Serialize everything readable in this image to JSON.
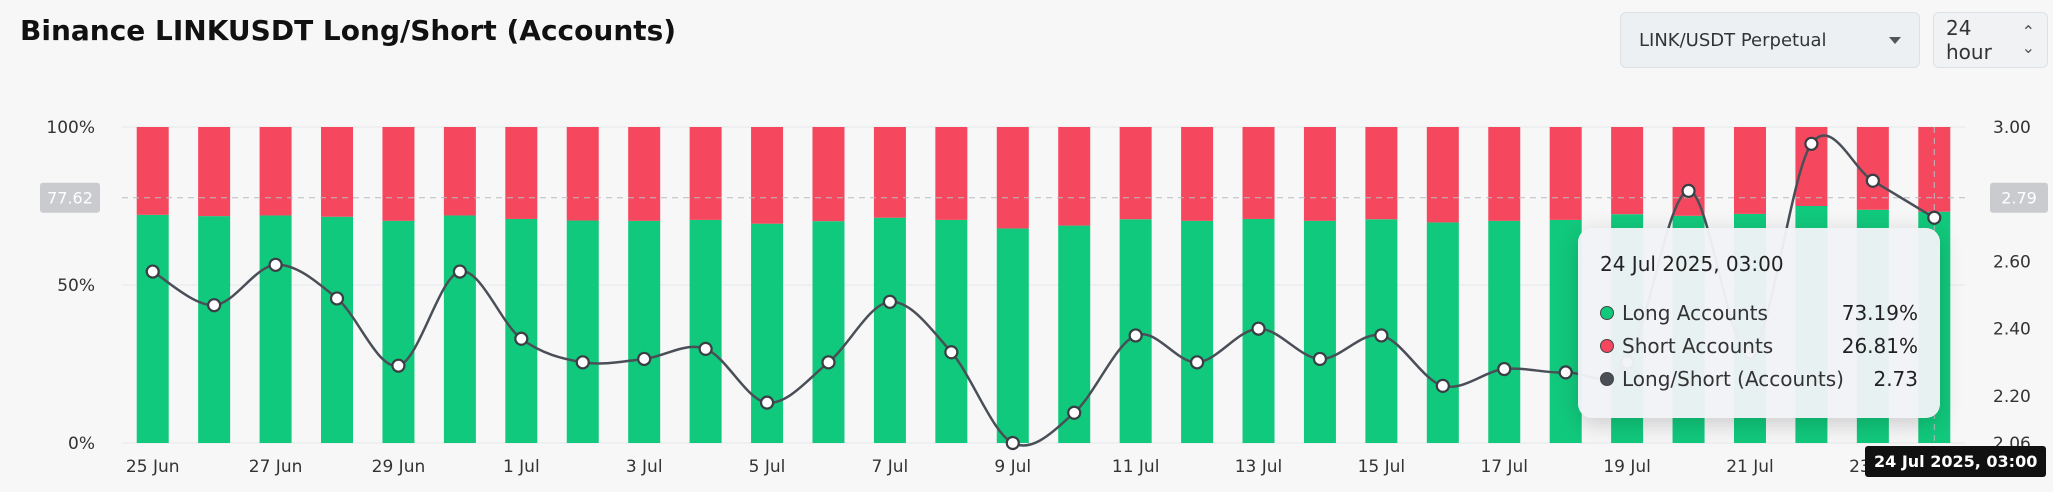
{
  "header": {
    "title": "Binance LINKUSDT Long/Short (Accounts)",
    "pair_select": "LINK/USDT Perpetual",
    "interval_select": "24 hour"
  },
  "colors": {
    "long": "#11c97c",
    "short": "#f5485f",
    "ratio_line": "#4a4f57",
    "badge": "#c9cbcf"
  },
  "icons": {
    "pair_select": "chevron-down-icon",
    "interval_select": "up-down-chevron-icon"
  },
  "chart_data": {
    "type": "bar",
    "categories": [
      "25 Jun",
      "26 Jun",
      "27 Jun",
      "28 Jun",
      "29 Jun",
      "30 Jun",
      "1 Jul",
      "2 Jul",
      "3 Jul",
      "4 Jul",
      "5 Jul",
      "6 Jul",
      "7 Jul",
      "8 Jul",
      "9 Jul",
      "10 Jul",
      "11 Jul",
      "12 Jul",
      "13 Jul",
      "14 Jul",
      "15 Jul",
      "16 Jul",
      "17 Jul",
      "18 Jul",
      "19 Jul",
      "20 Jul",
      "21 Jul",
      "22 Jul",
      "23 Jul",
      "24 Jul"
    ],
    "x_tick_labels": [
      "25 Jun",
      "27 Jun",
      "29 Jun",
      "1 Jul",
      "3 Jul",
      "5 Jul",
      "7 Jul",
      "9 Jul",
      "11 Jul",
      "13 Jul",
      "15 Jul",
      "17 Jul",
      "19 Jul",
      "21 Jul",
      "23 Jul"
    ],
    "series": [
      {
        "name": "Long Accounts",
        "values": [
          72.2,
          71.8,
          72.0,
          71.6,
          70.3,
          72.0,
          70.9,
          70.4,
          70.3,
          70.6,
          69.4,
          70.2,
          71.3,
          70.6,
          67.9,
          68.8,
          70.8,
          70.3,
          70.9,
          70.3,
          70.8,
          69.8,
          70.3,
          70.6,
          72.4,
          71.9,
          72.5,
          75.0,
          73.8,
          73.19
        ]
      },
      {
        "name": "Short Accounts",
        "values": [
          27.8,
          28.2,
          28.0,
          28.4,
          29.7,
          28.0,
          29.1,
          29.6,
          29.7,
          29.4,
          30.6,
          29.8,
          28.7,
          29.4,
          32.1,
          31.2,
          29.2,
          29.7,
          29.1,
          29.7,
          29.2,
          30.2,
          29.7,
          29.4,
          27.6,
          28.1,
          27.5,
          25.0,
          26.2,
          26.81
        ]
      },
      {
        "name": "Long/Short (Accounts)",
        "axis": "right",
        "values": [
          2.57,
          2.47,
          2.59,
          2.49,
          2.29,
          2.57,
          2.37,
          2.3,
          2.31,
          2.34,
          2.18,
          2.3,
          2.48,
          2.33,
          2.06,
          2.15,
          2.38,
          2.3,
          2.4,
          2.31,
          2.38,
          2.23,
          2.28,
          2.27,
          2.3,
          2.81,
          2.33,
          2.95,
          2.84,
          2.73
        ]
      }
    ],
    "y_left": {
      "ticks": [
        "0%",
        "50%",
        "100%"
      ],
      "range": [
        0,
        100
      ]
    },
    "y_right": {
      "ticks": [
        "2.06",
        "2.20",
        "2.40",
        "2.60",
        "2.80",
        "3.00"
      ],
      "range": [
        2.06,
        3.0
      ]
    },
    "crosshair": {
      "left_value": "77.62",
      "right_value": "2.79",
      "time_label": "24 Jul 2025, 03:00"
    },
    "tooltip": {
      "title": "24 Jul 2025, 03:00",
      "rows": [
        {
          "label": "Long Accounts",
          "value": "73.19%"
        },
        {
          "label": "Short Accounts",
          "value": "26.81%"
        },
        {
          "label": "Long/Short (Accounts)",
          "value": "2.73"
        }
      ]
    },
    "grid": true
  }
}
